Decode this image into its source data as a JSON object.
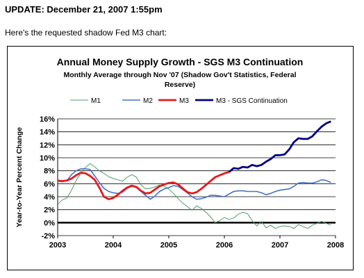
{
  "page": {
    "update_heading": "UPDATE: December 21, 2007 1:55pm",
    "intro_text": "Here's the requested shadow Fed M3 chart:"
  },
  "chart_data": {
    "type": "line",
    "title": "Annual Money Supply Growth - SGS M3 Continuation",
    "subtitle_line1": "Monthly Average  through Nov '07  (Shadow Gov't Statistics, Federal",
    "subtitle_line2": "Reserve)",
    "xlabel": "",
    "ylabel": "Year-to-Year Percent Change",
    "ylim": [
      -2,
      16
    ],
    "xlim": [
      2003,
      2008
    ],
    "y_ticks": [
      -2,
      0,
      2,
      4,
      6,
      8,
      10,
      12,
      14,
      16
    ],
    "y_tick_labels": [
      "-2%",
      "0%",
      "2%",
      "4%",
      "6%",
      "8%",
      "10%",
      "12%",
      "14%",
      "16%"
    ],
    "x_ticks": [
      2003,
      2004,
      2005,
      2006,
      2007,
      2008
    ],
    "x_tick_labels": [
      "2003",
      "2004",
      "2005",
      "2006",
      "2007",
      "2008"
    ],
    "grid": true,
    "legend_position": "top",
    "series": [
      {
        "name": "M1",
        "color": "#4f9a63",
        "x": [
          2003.0,
          2003.083,
          2003.167,
          2003.25,
          2003.333,
          2003.417,
          2003.5,
          2003.583,
          2003.667,
          2003.75,
          2003.833,
          2003.917,
          2004.0,
          2004.083,
          2004.167,
          2004.25,
          2004.333,
          2004.417,
          2004.5,
          2004.583,
          2004.667,
          2004.75,
          2004.833,
          2004.917,
          2005.0,
          2005.083,
          2005.167,
          2005.25,
          2005.333,
          2005.417,
          2005.5,
          2005.583,
          2005.667,
          2005.75,
          2005.833,
          2005.917,
          2006.0,
          2006.083,
          2006.167,
          2006.25,
          2006.333,
          2006.417,
          2006.5,
          2006.583,
          2006.667,
          2006.75,
          2006.833,
          2006.917,
          2007.0,
          2007.083,
          2007.167,
          2007.25,
          2007.333,
          2007.417,
          2007.5,
          2007.583,
          2007.667,
          2007.75,
          2007.833,
          2007.917
        ],
        "values": [
          2.8,
          3.5,
          3.8,
          5.0,
          6.5,
          7.6,
          8.5,
          9.1,
          8.6,
          8.0,
          7.6,
          7.1,
          6.8,
          6.6,
          6.4,
          7.0,
          7.4,
          7.0,
          5.8,
          5.2,
          5.3,
          5.5,
          5.8,
          5.6,
          5.2,
          4.5,
          3.7,
          3.0,
          2.5,
          1.9,
          2.6,
          2.2,
          1.6,
          0.9,
          0.0,
          0.3,
          0.8,
          0.5,
          0.7,
          1.3,
          1.6,
          1.4,
          0.3,
          -0.5,
          0.2,
          -0.8,
          -0.4,
          -0.9,
          -0.6,
          -0.5,
          -0.6,
          -0.9,
          -0.3,
          -0.6,
          -0.9,
          -0.4,
          -0.1,
          0.2,
          -0.1,
          -0.4
        ]
      },
      {
        "name": "M2",
        "color": "#4472c4",
        "x": [
          2003.0,
          2003.083,
          2003.167,
          2003.25,
          2003.333,
          2003.417,
          2003.5,
          2003.583,
          2003.667,
          2003.75,
          2003.833,
          2003.917,
          2004.0,
          2004.083,
          2004.167,
          2004.25,
          2004.333,
          2004.417,
          2004.5,
          2004.583,
          2004.667,
          2004.75,
          2004.833,
          2004.917,
          2005.0,
          2005.083,
          2005.167,
          2005.25,
          2005.333,
          2005.417,
          2005.5,
          2005.583,
          2005.667,
          2005.75,
          2005.833,
          2005.917,
          2006.0,
          2006.083,
          2006.167,
          2006.25,
          2006.333,
          2006.417,
          2006.5,
          2006.583,
          2006.667,
          2006.75,
          2006.833,
          2006.917,
          2007.0,
          2007.083,
          2007.167,
          2007.25,
          2007.333,
          2007.417,
          2007.5,
          2007.583,
          2007.667,
          2007.75,
          2007.833,
          2007.917
        ],
        "values": [
          6.4,
          6.3,
          6.5,
          7.4,
          8.0,
          8.3,
          8.3,
          8.2,
          7.2,
          6.2,
          5.3,
          4.8,
          4.6,
          4.5,
          4.7,
          5.3,
          5.6,
          5.4,
          4.8,
          4.2,
          3.6,
          4.1,
          4.8,
          5.2,
          5.4,
          5.7,
          5.6,
          5.1,
          4.6,
          4.0,
          3.6,
          3.7,
          3.9,
          4.2,
          4.2,
          4.1,
          4.0,
          4.4,
          4.8,
          4.9,
          4.9,
          4.8,
          4.8,
          4.8,
          4.6,
          4.3,
          4.5,
          4.8,
          5.0,
          5.1,
          5.2,
          5.6,
          6.1,
          6.2,
          6.1,
          6.1,
          6.3,
          6.6,
          6.5,
          6.2
        ]
      },
      {
        "name": "M3",
        "color": "#e41a1c",
        "x": [
          2003.0,
          2003.083,
          2003.167,
          2003.25,
          2003.333,
          2003.417,
          2003.5,
          2003.583,
          2003.667,
          2003.75,
          2003.833,
          2003.917,
          2004.0,
          2004.083,
          2004.167,
          2004.25,
          2004.333,
          2004.417,
          2004.5,
          2004.583,
          2004.667,
          2004.75,
          2004.833,
          2004.917,
          2005.0,
          2005.083,
          2005.167,
          2005.25,
          2005.333,
          2005.417,
          2005.5,
          2005.583,
          2005.667,
          2005.75,
          2005.833,
          2005.917,
          2006.0,
          2006.083
        ],
        "values": [
          6.5,
          6.4,
          6.5,
          6.8,
          7.3,
          7.7,
          7.6,
          7.2,
          6.6,
          5.4,
          4.0,
          3.6,
          3.8,
          4.3,
          4.9,
          5.4,
          5.7,
          5.5,
          4.9,
          4.5,
          4.6,
          5.1,
          5.6,
          5.9,
          6.1,
          6.2,
          5.9,
          5.3,
          4.7,
          4.5,
          4.7,
          5.2,
          5.8,
          6.4,
          7.0,
          7.3,
          7.6,
          7.8
        ]
      },
      {
        "name": "M3 - SGS Continuation",
        "color": "#000080",
        "x": [
          2006.083,
          2006.167,
          2006.25,
          2006.333,
          2006.417,
          2006.5,
          2006.583,
          2006.667,
          2006.75,
          2006.833,
          2006.917,
          2007.0,
          2007.083,
          2007.167,
          2007.25,
          2007.333,
          2007.417,
          2007.5,
          2007.583,
          2007.667,
          2007.75,
          2007.833,
          2007.917
        ],
        "values": [
          7.8,
          8.4,
          8.3,
          8.6,
          8.5,
          8.9,
          8.7,
          8.9,
          9.4,
          9.8,
          10.4,
          10.4,
          10.5,
          11.3,
          12.4,
          13.0,
          12.9,
          12.9,
          13.3,
          14.1,
          14.8,
          15.3,
          15.6
        ]
      }
    ]
  }
}
